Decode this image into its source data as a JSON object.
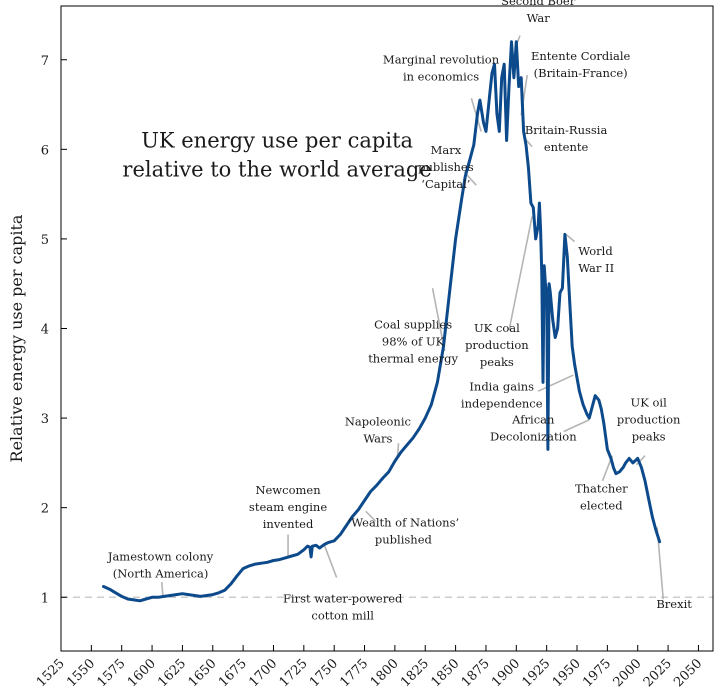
{
  "chart_data": {
    "type": "line",
    "title_lines": [
      "UK energy use per capita",
      "relative to the world average"
    ],
    "xlabel": "",
    "ylabel": "Relative energy use per capita",
    "xlim": [
      1525,
      2062
    ],
    "ylim": [
      0.4,
      7.6
    ],
    "x_ticks": [
      1525,
      1550,
      1575,
      1600,
      1625,
      1650,
      1675,
      1700,
      1725,
      1750,
      1775,
      1800,
      1825,
      1850,
      1875,
      1900,
      1925,
      1950,
      1975,
      2000,
      2025,
      2050
    ],
    "x_tick_labels": [
      "1525",
      "1550",
      "1575",
      "1600",
      "1625",
      "1650",
      "1675",
      "1700",
      "1725",
      "1750",
      "1775",
      "1800",
      "1825",
      "1850",
      "1875",
      "1900",
      "1925",
      "1950",
      "1975",
      "2000",
      "2025",
      "2050"
    ],
    "y_ticks": [
      1,
      2,
      3,
      4,
      5,
      6,
      7
    ],
    "y_tick_labels": [
      "1",
      "2",
      "3",
      "4",
      "5",
      "6",
      "7"
    ],
    "reference_line": {
      "y": 1,
      "style": "dashed",
      "color": "#cccccc"
    },
    "grid": false,
    "series": [
      {
        "color": "#0d4a8c",
        "points": [
          [
            1560,
            1.12
          ],
          [
            1565,
            1.09
          ],
          [
            1570,
            1.05
          ],
          [
            1575,
            1.01
          ],
          [
            1580,
            0.98
          ],
          [
            1585,
            0.97
          ],
          [
            1590,
            0.96
          ],
          [
            1595,
            0.98
          ],
          [
            1600,
            1.0
          ],
          [
            1605,
            1.0
          ],
          [
            1610,
            1.01
          ],
          [
            1615,
            1.02
          ],
          [
            1620,
            1.03
          ],
          [
            1625,
            1.04
          ],
          [
            1630,
            1.03
          ],
          [
            1635,
            1.02
          ],
          [
            1640,
            1.01
          ],
          [
            1645,
            1.02
          ],
          [
            1650,
            1.03
          ],
          [
            1655,
            1.05
          ],
          [
            1660,
            1.08
          ],
          [
            1665,
            1.15
          ],
          [
            1670,
            1.24
          ],
          [
            1675,
            1.32
          ],
          [
            1680,
            1.35
          ],
          [
            1685,
            1.37
          ],
          [
            1690,
            1.38
          ],
          [
            1695,
            1.39
          ],
          [
            1700,
            1.41
          ],
          [
            1705,
            1.42
          ],
          [
            1710,
            1.44
          ],
          [
            1715,
            1.46
          ],
          [
            1720,
            1.48
          ],
          [
            1725,
            1.53
          ],
          [
            1728,
            1.57
          ],
          [
            1730,
            1.56
          ],
          [
            1731,
            1.45
          ],
          [
            1732,
            1.57
          ],
          [
            1735,
            1.58
          ],
          [
            1738,
            1.55
          ],
          [
            1740,
            1.57
          ],
          [
            1742,
            1.59
          ],
          [
            1745,
            1.61
          ],
          [
            1750,
            1.63
          ],
          [
            1755,
            1.7
          ],
          [
            1760,
            1.8
          ],
          [
            1765,
            1.9
          ],
          [
            1770,
            1.98
          ],
          [
            1775,
            2.08
          ],
          [
            1780,
            2.18
          ],
          [
            1785,
            2.25
          ],
          [
            1790,
            2.33
          ],
          [
            1795,
            2.4
          ],
          [
            1800,
            2.52
          ],
          [
            1805,
            2.62
          ],
          [
            1810,
            2.7
          ],
          [
            1815,
            2.78
          ],
          [
            1820,
            2.88
          ],
          [
            1825,
            3.0
          ],
          [
            1830,
            3.15
          ],
          [
            1835,
            3.4
          ],
          [
            1840,
            3.8
          ],
          [
            1845,
            4.4
          ],
          [
            1850,
            5.0
          ],
          [
            1855,
            5.45
          ],
          [
            1858,
            5.7
          ],
          [
            1862,
            5.9
          ],
          [
            1865,
            6.05
          ],
          [
            1868,
            6.4
          ],
          [
            1870,
            6.55
          ],
          [
            1873,
            6.3
          ],
          [
            1875,
            6.2
          ],
          [
            1878,
            6.6
          ],
          [
            1880,
            6.85
          ],
          [
            1882,
            6.95
          ],
          [
            1884,
            6.4
          ],
          [
            1886,
            6.2
          ],
          [
            1888,
            6.8
          ],
          [
            1890,
            6.95
          ],
          [
            1892,
            6.1
          ],
          [
            1894,
            6.7
          ],
          [
            1896,
            7.2
          ],
          [
            1898,
            6.8
          ],
          [
            1900,
            7.2
          ],
          [
            1902,
            6.7
          ],
          [
            1904,
            6.8
          ],
          [
            1906,
            6.2
          ],
          [
            1908,
            6.05
          ],
          [
            1910,
            5.8
          ],
          [
            1912,
            5.4
          ],
          [
            1914,
            5.35
          ],
          [
            1916,
            5.0
          ],
          [
            1918,
            5.15
          ],
          [
            1919,
            5.4
          ],
          [
            1920,
            5.1
          ],
          [
            1921,
            4.6
          ],
          [
            1922,
            3.4
          ],
          [
            1923,
            4.7
          ],
          [
            1924,
            4.5
          ],
          [
            1925,
            4.4
          ],
          [
            1926,
            2.65
          ],
          [
            1927,
            4.5
          ],
          [
            1928,
            4.4
          ],
          [
            1930,
            4.1
          ],
          [
            1932,
            3.9
          ],
          [
            1934,
            4.0
          ],
          [
            1936,
            4.4
          ],
          [
            1938,
            4.45
          ],
          [
            1940,
            5.05
          ],
          [
            1942,
            4.8
          ],
          [
            1944,
            4.3
          ],
          [
            1946,
            3.8
          ],
          [
            1948,
            3.6
          ],
          [
            1950,
            3.45
          ],
          [
            1952,
            3.3
          ],
          [
            1955,
            3.15
          ],
          [
            1958,
            3.05
          ],
          [
            1960,
            3.0
          ],
          [
            1963,
            3.15
          ],
          [
            1965,
            3.25
          ],
          [
            1968,
            3.2
          ],
          [
            1970,
            3.1
          ],
          [
            1972,
            2.95
          ],
          [
            1975,
            2.65
          ],
          [
            1978,
            2.55
          ],
          [
            1980,
            2.45
          ],
          [
            1982,
            2.38
          ],
          [
            1985,
            2.4
          ],
          [
            1988,
            2.45
          ],
          [
            1990,
            2.5
          ],
          [
            1993,
            2.55
          ],
          [
            1996,
            2.5
          ],
          [
            2000,
            2.55
          ],
          [
            2003,
            2.45
          ],
          [
            2006,
            2.3
          ],
          [
            2009,
            2.1
          ],
          [
            2012,
            1.9
          ],
          [
            2015,
            1.75
          ],
          [
            2018,
            1.62
          ]
        ]
      }
    ],
    "annotations": [
      {
        "lines": [
          "Jamestown colony",
          "(North America)"
        ],
        "text_x": 1607,
        "text_y": 1.41,
        "anchor": "middle",
        "point": [
          1609,
          1.0
        ],
        "leader_from": [
          1608,
          1.17
        ]
      },
      {
        "lines": [
          "Newcomen",
          "steam engine",
          "invented"
        ],
        "text_x": 1712,
        "text_y": 2.15,
        "anchor": "middle",
        "point": [
          1712,
          1.45
        ],
        "leader_from": [
          1712,
          1.7
        ]
      },
      {
        "lines": [
          "First water-powered",
          "cotton mill"
        ],
        "text_x": 1757,
        "text_y": 0.94,
        "anchor": "middle",
        "point": [
          1742,
          1.58
        ],
        "leader_from": [
          1752,
          1.22
        ]
      },
      {
        "lines": [
          "Napoleonic",
          "Wars"
        ],
        "text_x": 1786,
        "text_y": 2.92,
        "anchor": "middle",
        "point": [
          1802,
          2.55
        ],
        "leader_from": [
          1803,
          2.72
        ]
      },
      {
        "lines": [
          "‘Wealth of Nations’",
          "published"
        ],
        "text_x": 1807,
        "text_y": 1.79,
        "anchor": "middle",
        "point": [
          1776,
          1.96
        ],
        "leader_from": [
          1784,
          1.85
        ]
      },
      {
        "lines": [
          "Coal supplies",
          "98% of UK",
          "thermal energy"
        ],
        "text_x": 1815,
        "text_y": 4.0,
        "anchor": "middle",
        "point": [
          1841,
          3.75
        ],
        "leader_from": [
          1831,
          4.45
        ]
      },
      {
        "lines": [
          "Marx",
          "publishes",
          "‘Capital’"
        ],
        "text_x": 1842,
        "text_y": 5.95,
        "anchor": "middle",
        "point": [
          1867,
          5.6
        ],
        "leader_from": [
          1857,
          5.75
        ]
      },
      {
        "lines": [
          "Marginal revolution",
          "in economics"
        ],
        "text_x": 1838,
        "text_y": 6.96,
        "anchor": "middle",
        "point": [
          1871,
          6.2
        ],
        "leader_from": [
          1863,
          6.57
        ]
      },
      {
        "lines": [
          "Second Boer",
          "War"
        ],
        "text_x": 1918,
        "text_y": 7.61,
        "anchor": "middle",
        "point": [
          1899,
          7.12
        ],
        "leader_from": [
          1903,
          7.27
        ]
      },
      {
        "lines": [
          "Entente Cordiale",
          "(Britain-France)"
        ],
        "text_x": 1953,
        "text_y": 7.0,
        "anchor": "middle",
        "point": [
          1904,
          6.38
        ],
        "leader_from": [
          1909,
          6.83
        ]
      },
      {
        "lines": [
          "Britain-Russia",
          "entente"
        ],
        "text_x": 1941,
        "text_y": 6.17,
        "anchor": "middle",
        "point": [
          1907,
          6.12
        ],
        "leader_from": [
          1913,
          6.03
        ]
      },
      {
        "lines": [
          "World",
          "War II"
        ],
        "text_x": 1951,
        "text_y": 4.82,
        "anchor": "start",
        "point": [
          1941,
          5.05
        ],
        "leader_from": [
          1948,
          4.97
        ]
      },
      {
        "lines": [
          "UK coal",
          "production",
          "peaks"
        ],
        "text_x": 1884,
        "text_y": 3.96,
        "anchor": "middle",
        "point": [
          1913,
          5.25
        ],
        "leader_from": [
          1894,
          3.98
        ]
      },
      {
        "lines": [
          "India gains",
          "independence"
        ],
        "text_x": 1888,
        "text_y": 3.31,
        "anchor": "middle",
        "point": [
          1947,
          3.48
        ],
        "leader_from": [
          1918,
          3.3
        ]
      },
      {
        "lines": [
          "African",
          "Decolonization"
        ],
        "text_x": 1914,
        "text_y": 2.94,
        "anchor": "middle",
        "point": [
          1960,
          2.98
        ],
        "leader_from": [
          1939,
          2.85
        ]
      },
      {
        "lines": [
          "UK oil",
          "production",
          "peaks"
        ],
        "text_x": 2009,
        "text_y": 3.13,
        "anchor": "middle",
        "point": [
          1999,
          2.48
        ],
        "leader_from": [
          2006,
          2.58
        ]
      },
      {
        "lines": [
          "Thatcher",
          "elected"
        ],
        "text_x": 1970,
        "text_y": 2.17,
        "anchor": "middle",
        "point": [
          1979,
          2.58
        ],
        "leader_from": [
          1971,
          2.3
        ]
      },
      {
        "lines": [
          "Brexit"
        ],
        "text_x": 2030,
        "text_y": 0.88,
        "anchor": "middle",
        "point": [
          2016,
          1.78
        ],
        "leader_from": [
          2021,
          0.98
        ]
      }
    ]
  }
}
